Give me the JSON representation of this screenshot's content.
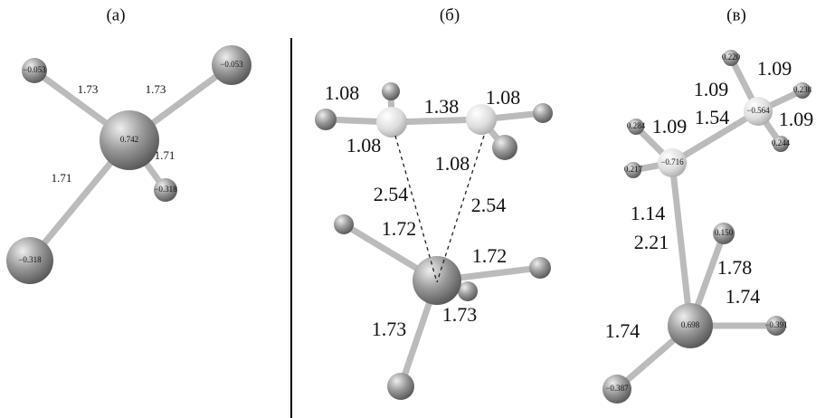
{
  "panels": [
    {
      "label": "(а)",
      "charges": [
        "0.742",
        "−0.053",
        "−0.053",
        "−0.318",
        "−0.318"
      ],
      "bonds": [
        "1.73",
        "1.73",
        "1.71",
        "1.71"
      ]
    },
    {
      "label": "(б)",
      "bonds": [
        "1.08",
        "1.38",
        "1.08",
        "1.08",
        "1.08",
        "2.54",
        "2.54",
        "1.72",
        "1.72",
        "1.73",
        "1.73"
      ]
    },
    {
      "label": "(в)",
      "charges": [
        "−0.564",
        "0.220",
        "0.238",
        "0.244",
        "−0.716",
        "0.284",
        "0.217",
        "0.150",
        "0.698",
        "−0.391",
        "−0.387"
      ],
      "bonds": [
        "1.09",
        "1.09",
        "1.09",
        "1.54",
        "1.09",
        "1.14",
        "2.21",
        "1.78",
        "1.74",
        "1.74"
      ]
    }
  ]
}
